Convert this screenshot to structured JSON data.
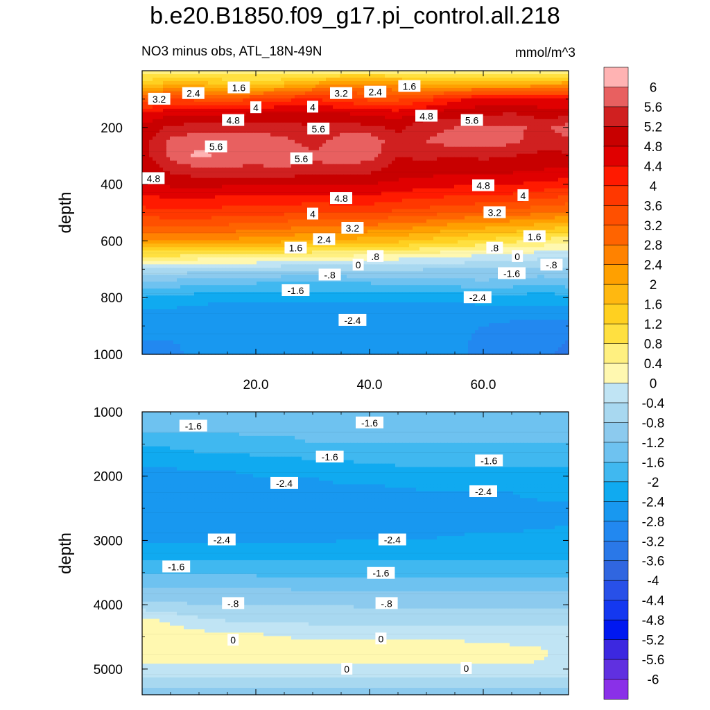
{
  "title": "b.e20.B1850.f09_g17.pi_control.all.218",
  "subtitle": "NO3 minus obs, ATL_18N-49N",
  "units": "mmol/m^3",
  "chart_data": {
    "type": "contour",
    "variable": "NO3 minus obs",
    "region": "ATL_18N-49N",
    "units": "mmol/m^3",
    "x_axis": {
      "range": [
        0,
        75
      ],
      "tick_labels": [
        "20.0",
        "40.0",
        "60.0"
      ],
      "tick_values": [
        20,
        40,
        60
      ]
    },
    "panels": [
      {
        "name": "upper",
        "ylabel": "depth",
        "ylim": [
          0,
          1000
        ],
        "y_tick_labels": [
          "200",
          "400",
          "600",
          "800",
          "1000"
        ],
        "y_tick_values": [
          200,
          400,
          600,
          800,
          1000
        ],
        "line_labels": [
          {
            "text": "3.2",
            "x": 3,
            "y": 100
          },
          {
            "text": "2.4",
            "x": 9,
            "y": 80
          },
          {
            "text": "1.6",
            "x": 17,
            "y": 60
          },
          {
            "text": "3.2",
            "x": 35,
            "y": 80
          },
          {
            "text": "2.4",
            "x": 41,
            "y": 75
          },
          {
            "text": "1.6",
            "x": 47,
            "y": 55
          },
          {
            "text": "4",
            "x": 20,
            "y": 130
          },
          {
            "text": "4",
            "x": 30,
            "y": 128
          },
          {
            "text": "4.8",
            "x": 16,
            "y": 175
          },
          {
            "text": "5.6",
            "x": 31,
            "y": 205
          },
          {
            "text": "4.8",
            "x": 50,
            "y": 160
          },
          {
            "text": "5.6",
            "x": 58,
            "y": 175
          },
          {
            "text": "5.6",
            "x": 13,
            "y": 268
          },
          {
            "text": "5.6",
            "x": 28,
            "y": 310
          },
          {
            "text": "4.8",
            "x": 2,
            "y": 380
          },
          {
            "text": "4.8",
            "x": 35,
            "y": 450
          },
          {
            "text": "4.8",
            "x": 60,
            "y": 405
          },
          {
            "text": "4",
            "x": 67,
            "y": 440
          },
          {
            "text": "4",
            "x": 30,
            "y": 505
          },
          {
            "text": "3.2",
            "x": 37,
            "y": 555
          },
          {
            "text": "3.2",
            "x": 62,
            "y": 500
          },
          {
            "text": "2.4",
            "x": 32,
            "y": 595
          },
          {
            "text": "1.6",
            "x": 27,
            "y": 625
          },
          {
            "text": "1.6",
            "x": 69,
            "y": 585
          },
          {
            "text": ".8",
            "x": 41,
            "y": 655
          },
          {
            "text": ".8",
            "x": 62,
            "y": 625
          },
          {
            "text": "0",
            "x": 38,
            "y": 685
          },
          {
            "text": "0",
            "x": 66,
            "y": 655
          },
          {
            "text": "-.8",
            "x": 72,
            "y": 685
          },
          {
            "text": "-.8",
            "x": 33,
            "y": 720
          },
          {
            "text": "-1.6",
            "x": 27,
            "y": 775
          },
          {
            "text": "-1.6",
            "x": 65,
            "y": 715
          },
          {
            "text": "-2.4",
            "x": 59,
            "y": 800
          },
          {
            "text": "-2.4",
            "x": 37,
            "y": 880
          }
        ]
      },
      {
        "name": "lower",
        "ylabel": "depth",
        "ylim": [
          1000,
          5400
        ],
        "y_tick_labels": [
          "1000",
          "2000",
          "3000",
          "4000",
          "5000"
        ],
        "y_tick_values": [
          1000,
          2000,
          3000,
          4000,
          5000
        ],
        "line_labels": [
          {
            "text": "-1.6",
            "x": 9,
            "y": 1220
          },
          {
            "text": "-1.6",
            "x": 40,
            "y": 1170
          },
          {
            "text": "-1.6",
            "x": 33,
            "y": 1700
          },
          {
            "text": "-1.6",
            "x": 61,
            "y": 1760
          },
          {
            "text": "-2.4",
            "x": 25,
            "y": 2110
          },
          {
            "text": "-2.4",
            "x": 60,
            "y": 2240
          },
          {
            "text": "-2.4",
            "x": 14,
            "y": 2990
          },
          {
            "text": "-2.4",
            "x": 44,
            "y": 2990
          },
          {
            "text": "-1.6",
            "x": 6,
            "y": 3410
          },
          {
            "text": "-1.6",
            "x": 42,
            "y": 3510
          },
          {
            "text": "-.8",
            "x": 16,
            "y": 3980
          },
          {
            "text": "-.8",
            "x": 43,
            "y": 3980
          },
          {
            "text": "0",
            "x": 16,
            "y": 4550
          },
          {
            "text": "0",
            "x": 42,
            "y": 4530
          },
          {
            "text": "0",
            "x": 36,
            "y": 5000
          },
          {
            "text": "0",
            "x": 57,
            "y": 4990
          }
        ]
      }
    ],
    "colorbar": {
      "labels": [
        "6",
        "5.6",
        "5.2",
        "4.8",
        "4.4",
        "4",
        "3.6",
        "3.2",
        "2.8",
        "2.4",
        "2",
        "1.6",
        "1.2",
        "0.8",
        "0.4",
        "0",
        "-0.4",
        "-0.8",
        "-1.2",
        "-1.6",
        "-2",
        "-2.4",
        "-2.8",
        "-3.2",
        "-3.6",
        "-4",
        "-4.4",
        "-4.8",
        "-5.2",
        "-5.6",
        "-6"
      ],
      "colors": [
        "#ffb3b3",
        "#e86060",
        "#d02020",
        "#c80000",
        "#e00000",
        "#ff1a00",
        "#ff3800",
        "#ff5000",
        "#ff6400",
        "#ff8200",
        "#ffa000",
        "#ffb810",
        "#ffd020",
        "#ffe040",
        "#fff080",
        "#fff8b0",
        "#c0e4f4",
        "#a8d8f0",
        "#8ccaee",
        "#6ec2f0",
        "#40b8f0",
        "#10aaf0",
        "#1898f0",
        "#2288f0",
        "#2a78e8",
        "#3066e0",
        "#2850e8",
        "#1438f0",
        "#0018f0",
        "#3c28e0",
        "#6030e0",
        "#8a30e8"
      ]
    },
    "upper_field": {
      "x": [
        0,
        5,
        10,
        15,
        20,
        25,
        30,
        35,
        40,
        45,
        50,
        55,
        60,
        65,
        70,
        75
      ],
      "y": [
        0,
        50,
        100,
        150,
        200,
        250,
        300,
        350,
        400,
        450,
        500,
        550,
        600,
        650,
        700,
        750,
        800,
        850,
        900,
        950,
        1000
      ],
      "values": [
        [
          0.4,
          0.4,
          0.4,
          0.5,
          0.4,
          0.3,
          0.4,
          0.4,
          0.4,
          0.5,
          0.4,
          0.4,
          0.4,
          0.5,
          0.4,
          0.4
        ],
        [
          1.6,
          1.9,
          1.9,
          1.6,
          1.5,
          1.8,
          2.2,
          2.6,
          2.6,
          2.4,
          2.0,
          1.9,
          2.0,
          2.1,
          2.2,
          2.3
        ],
        [
          3.2,
          3.6,
          3.5,
          3.4,
          3.6,
          3.9,
          4.0,
          3.8,
          3.5,
          3.5,
          3.8,
          4.3,
          4.5,
          4.6,
          4.5,
          4.5
        ],
        [
          4.4,
          4.7,
          4.7,
          4.7,
          4.8,
          4.9,
          4.9,
          4.8,
          4.7,
          4.6,
          4.9,
          5.0,
          5.1,
          5.2,
          5.0,
          5.0
        ],
        [
          4.9,
          5.3,
          5.4,
          5.4,
          5.5,
          5.4,
          5.2,
          5.4,
          5.3,
          5.1,
          5.5,
          5.6,
          5.7,
          5.7,
          5.5,
          5.8
        ],
        [
          5.0,
          5.7,
          5.9,
          5.8,
          5.8,
          5.7,
          5.4,
          5.8,
          5.9,
          5.3,
          5.6,
          5.8,
          5.8,
          5.7,
          5.4,
          5.5
        ],
        [
          5.0,
          5.7,
          6.1,
          5.9,
          5.8,
          6.0,
          5.7,
          5.9,
          5.8,
          5.2,
          5.3,
          5.2,
          5.3,
          5.2,
          5.1,
          5.1
        ],
        [
          4.9,
          5.3,
          5.5,
          5.5,
          5.5,
          5.5,
          5.4,
          5.4,
          5.3,
          5.0,
          5.0,
          4.9,
          4.9,
          4.9,
          4.8,
          4.7
        ],
        [
          4.7,
          4.9,
          4.9,
          4.9,
          4.9,
          4.9,
          4.8,
          4.8,
          4.8,
          4.7,
          4.6,
          4.5,
          4.5,
          4.4,
          4.3,
          4.2
        ],
        [
          4.3,
          4.4,
          4.4,
          4.3,
          4.3,
          4.3,
          4.2,
          4.3,
          4.3,
          4.1,
          4.0,
          3.9,
          3.9,
          3.8,
          3.6,
          3.5
        ],
        [
          3.8,
          3.9,
          3.9,
          3.8,
          3.7,
          3.7,
          3.6,
          3.6,
          3.6,
          3.5,
          3.4,
          3.2,
          3.1,
          3.0,
          2.9,
          2.7
        ],
        [
          3.1,
          3.2,
          3.2,
          3.1,
          3.0,
          2.9,
          2.8,
          2.8,
          2.7,
          2.6,
          2.4,
          2.2,
          2.1,
          2.0,
          1.8,
          1.6
        ],
        [
          2.3,
          2.4,
          2.4,
          2.3,
          2.2,
          2.1,
          2.0,
          1.9,
          1.8,
          1.7,
          1.5,
          1.3,
          1.1,
          0.9,
          0.7,
          0.5
        ],
        [
          0.9,
          0.9,
          0.8,
          0.8,
          0.7,
          0.6,
          0.5,
          0.5,
          0.4,
          0.3,
          0.2,
          0.1,
          0.0,
          -0.1,
          -0.2,
          -0.3
        ],
        [
          -0.4,
          -0.5,
          -0.6,
          -0.6,
          -0.6,
          -0.7,
          -0.7,
          -0.7,
          -0.7,
          -0.7,
          -0.8,
          -0.8,
          -0.8,
          -0.9,
          -0.9,
          -0.9
        ],
        [
          -1.3,
          -1.4,
          -1.5,
          -1.6,
          -1.6,
          -1.7,
          -1.7,
          -1.7,
          -1.6,
          -1.6,
          -1.5,
          -1.4,
          -1.3,
          -1.4,
          -1.5,
          -1.4
        ],
        [
          -2.0,
          -2.1,
          -2.2,
          -2.3,
          -2.3,
          -2.3,
          -2.3,
          -2.3,
          -2.3,
          -2.3,
          -2.3,
          -2.3,
          -2.2,
          -2.2,
          -2.2,
          -2.2
        ],
        [
          -2.5,
          -2.5,
          -2.6,
          -2.6,
          -2.6,
          -2.6,
          -2.6,
          -2.6,
          -2.6,
          -2.6,
          -2.6,
          -2.6,
          -2.6,
          -2.6,
          -2.6,
          -2.6
        ],
        [
          -2.6,
          -2.7,
          -2.7,
          -2.7,
          -2.7,
          -2.7,
          -2.7,
          -2.7,
          -2.7,
          -2.7,
          -2.7,
          -2.7,
          -2.8,
          -2.9,
          -2.9,
          -3.0
        ],
        [
          -2.8,
          -2.8,
          -2.7,
          -2.7,
          -2.7,
          -2.7,
          -2.7,
          -2.7,
          -2.7,
          -2.7,
          -2.7,
          -2.7,
          -2.9,
          -2.9,
          -3.0,
          -3.2
        ],
        [
          -2.8,
          -2.9,
          -2.7,
          -2.7,
          -2.7,
          -2.7,
          -2.7,
          -2.7,
          -2.7,
          -2.7,
          -2.7,
          -2.7,
          -2.9,
          -2.9,
          -3.1,
          -3.3
        ]
      ]
    },
    "lower_field": {
      "x": [
        0,
        5,
        10,
        15,
        20,
        25,
        30,
        35,
        40,
        45,
        50,
        55,
        60,
        65,
        70,
        75
      ],
      "y": [
        1000,
        1250,
        1500,
        1750,
        2000,
        2250,
        2500,
        2750,
        3000,
        3250,
        3500,
        3750,
        4000,
        4250,
        4500,
        4750,
        5000,
        5200,
        5400
      ],
      "values": [
        [
          -1.2,
          -1.2,
          -1.2,
          -1.2,
          -1.2,
          -1.2,
          -1.2,
          -1.2,
          -1.2,
          -1.2,
          -1.2,
          -1.2,
          -1.2,
          -1.2,
          -1.2,
          -1.2
        ],
        [
          -1.5,
          -1.5,
          -1.5,
          -1.5,
          -1.5,
          -1.5,
          -1.5,
          -1.5,
          -1.3,
          -1.3,
          -1.3,
          -1.4,
          -1.4,
          -1.5,
          -1.5,
          -1.5
        ],
        [
          -1.9,
          -1.9,
          -1.8,
          -1.8,
          -1.7,
          -1.7,
          -1.6,
          -1.6,
          -1.6,
          -1.6,
          -1.6,
          -1.6,
          -1.6,
          -1.6,
          -1.6,
          -1.6
        ],
        [
          -2.3,
          -2.3,
          -2.2,
          -2.2,
          -2.1,
          -2.1,
          -2.0,
          -2.0,
          -1.9,
          -1.9,
          -1.9,
          -1.9,
          -1.9,
          -1.9,
          -1.9,
          -1.9
        ],
        [
          -2.5,
          -2.5,
          -2.5,
          -2.5,
          -2.4,
          -2.4,
          -2.4,
          -2.3,
          -2.3,
          -2.2,
          -2.2,
          -2.2,
          -2.2,
          -2.1,
          -2.1,
          -2.1
        ],
        [
          -2.6,
          -2.6,
          -2.6,
          -2.6,
          -2.6,
          -2.5,
          -2.5,
          -2.5,
          -2.5,
          -2.5,
          -2.4,
          -2.4,
          -2.4,
          -2.4,
          -2.3,
          -2.3
        ],
        [
          -2.6,
          -2.6,
          -2.6,
          -2.6,
          -2.6,
          -2.6,
          -2.6,
          -2.6,
          -2.6,
          -2.6,
          -2.6,
          -2.6,
          -2.6,
          -2.5,
          -2.5,
          -2.5
        ],
        [
          -2.6,
          -2.6,
          -2.6,
          -2.6,
          -2.6,
          -2.6,
          -2.6,
          -2.6,
          -2.6,
          -2.6,
          -2.6,
          -2.6,
          -2.5,
          -2.5,
          -2.5,
          -2.4
        ],
        [
          -2.5,
          -2.5,
          -2.5,
          -2.5,
          -2.5,
          -2.5,
          -2.5,
          -2.4,
          -2.4,
          -2.4,
          -2.4,
          -2.3,
          -2.3,
          -2.3,
          -2.2,
          -2.2
        ],
        [
          -2.1,
          -2.1,
          -2.1,
          -2.1,
          -2.1,
          -2.1,
          -2.1,
          -2.1,
          -2.1,
          -2.1,
          -2.1,
          -2.1,
          -2.1,
          -2.1,
          -2.1,
          -2.1
        ],
        [
          -1.6,
          -1.6,
          -1.6,
          -1.6,
          -1.7,
          -1.7,
          -1.7,
          -1.7,
          -1.7,
          -1.7,
          -1.7,
          -1.7,
          -1.7,
          -1.7,
          -1.7,
          -1.7
        ],
        [
          -1.2,
          -1.2,
          -1.2,
          -1.2,
          -1.2,
          -1.2,
          -1.3,
          -1.3,
          -1.3,
          -1.3,
          -1.3,
          -1.3,
          -1.3,
          -1.3,
          -1.3,
          -1.3
        ],
        [
          -0.7,
          -0.7,
          -0.8,
          -0.8,
          -0.8,
          -0.8,
          -0.8,
          -0.8,
          -0.9,
          -0.9,
          -0.9,
          -0.9,
          -0.9,
          -0.9,
          -0.9,
          -0.9
        ],
        [
          0.2,
          -0.1,
          -0.3,
          -0.4,
          -0.4,
          -0.4,
          -0.5,
          -0.5,
          -0.5,
          -0.5,
          -0.5,
          -0.5,
          -0.5,
          -0.5,
          -0.5,
          -0.5
        ],
        [
          0.3,
          0.3,
          0.2,
          0.1,
          0.1,
          0.0,
          -0.1,
          -0.1,
          -0.1,
          -0.1,
          -0.1,
          -0.1,
          -0.1,
          -0.2,
          -0.2,
          -0.2
        ],
        [
          0.3,
          0.3,
          0.3,
          0.3,
          0.3,
          0.3,
          0.3,
          0.3,
          0.3,
          0.3,
          0.3,
          0.3,
          0.2,
          0.2,
          0.1,
          -0.2
        ],
        [
          -0.1,
          -0.1,
          -0.1,
          -0.1,
          -0.1,
          -0.1,
          -0.1,
          -0.1,
          -0.1,
          -0.1,
          -0.1,
          -0.1,
          -0.1,
          -0.1,
          -0.1,
          -0.1
        ],
        [
          -0.6,
          -0.6,
          -0.6,
          -0.6,
          -0.6,
          -0.6,
          -0.6,
          -0.6,
          -0.6,
          -0.6,
          -0.6,
          -0.6,
          -0.6,
          -0.6,
          -0.6,
          -0.6
        ],
        [
          -1.1,
          -1.1,
          -1.1,
          -1.1,
          -1.1,
          -1.1,
          -1.1,
          -1.1,
          -1.1,
          -1.1,
          -1.1,
          -1.1,
          -1.1,
          -1.1,
          -1.1,
          -1.1
        ]
      ]
    }
  }
}
